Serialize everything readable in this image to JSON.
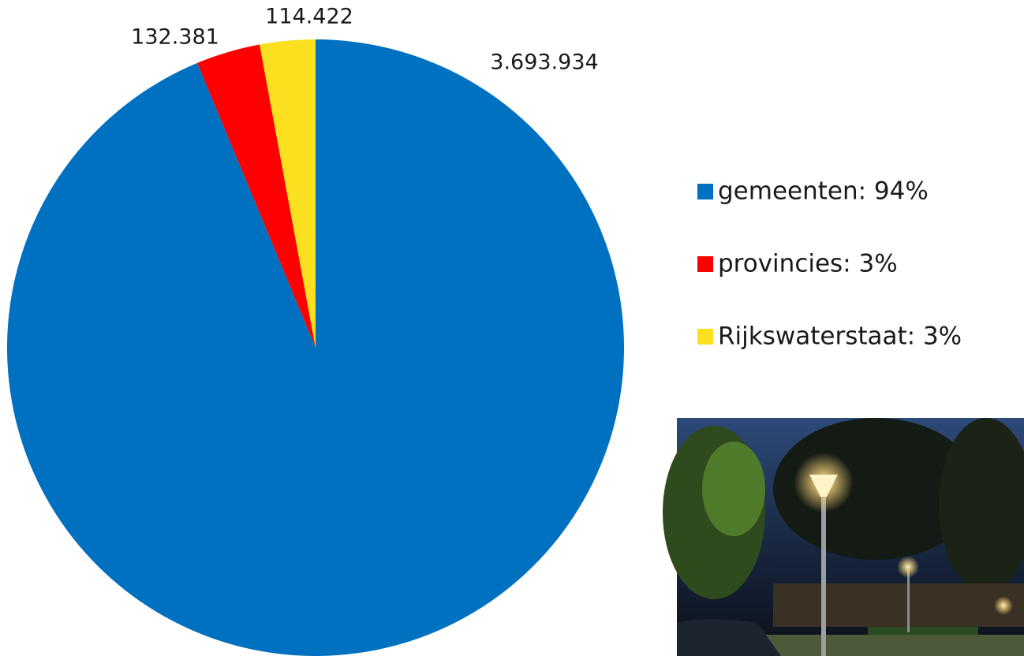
{
  "chart_data": {
    "type": "pie",
    "categories": [
      "gemeenten: 94%",
      "provincies: 3%",
      "Rijkswaterstaat: 3%"
    ],
    "values": [
      3693934,
      132381,
      114422
    ],
    "value_labels": [
      "3.693.934",
      "132.381",
      "114.422"
    ],
    "colors": [
      "#0070c0",
      "#ff0000",
      "#fae01e"
    ],
    "legend": "right"
  }
}
